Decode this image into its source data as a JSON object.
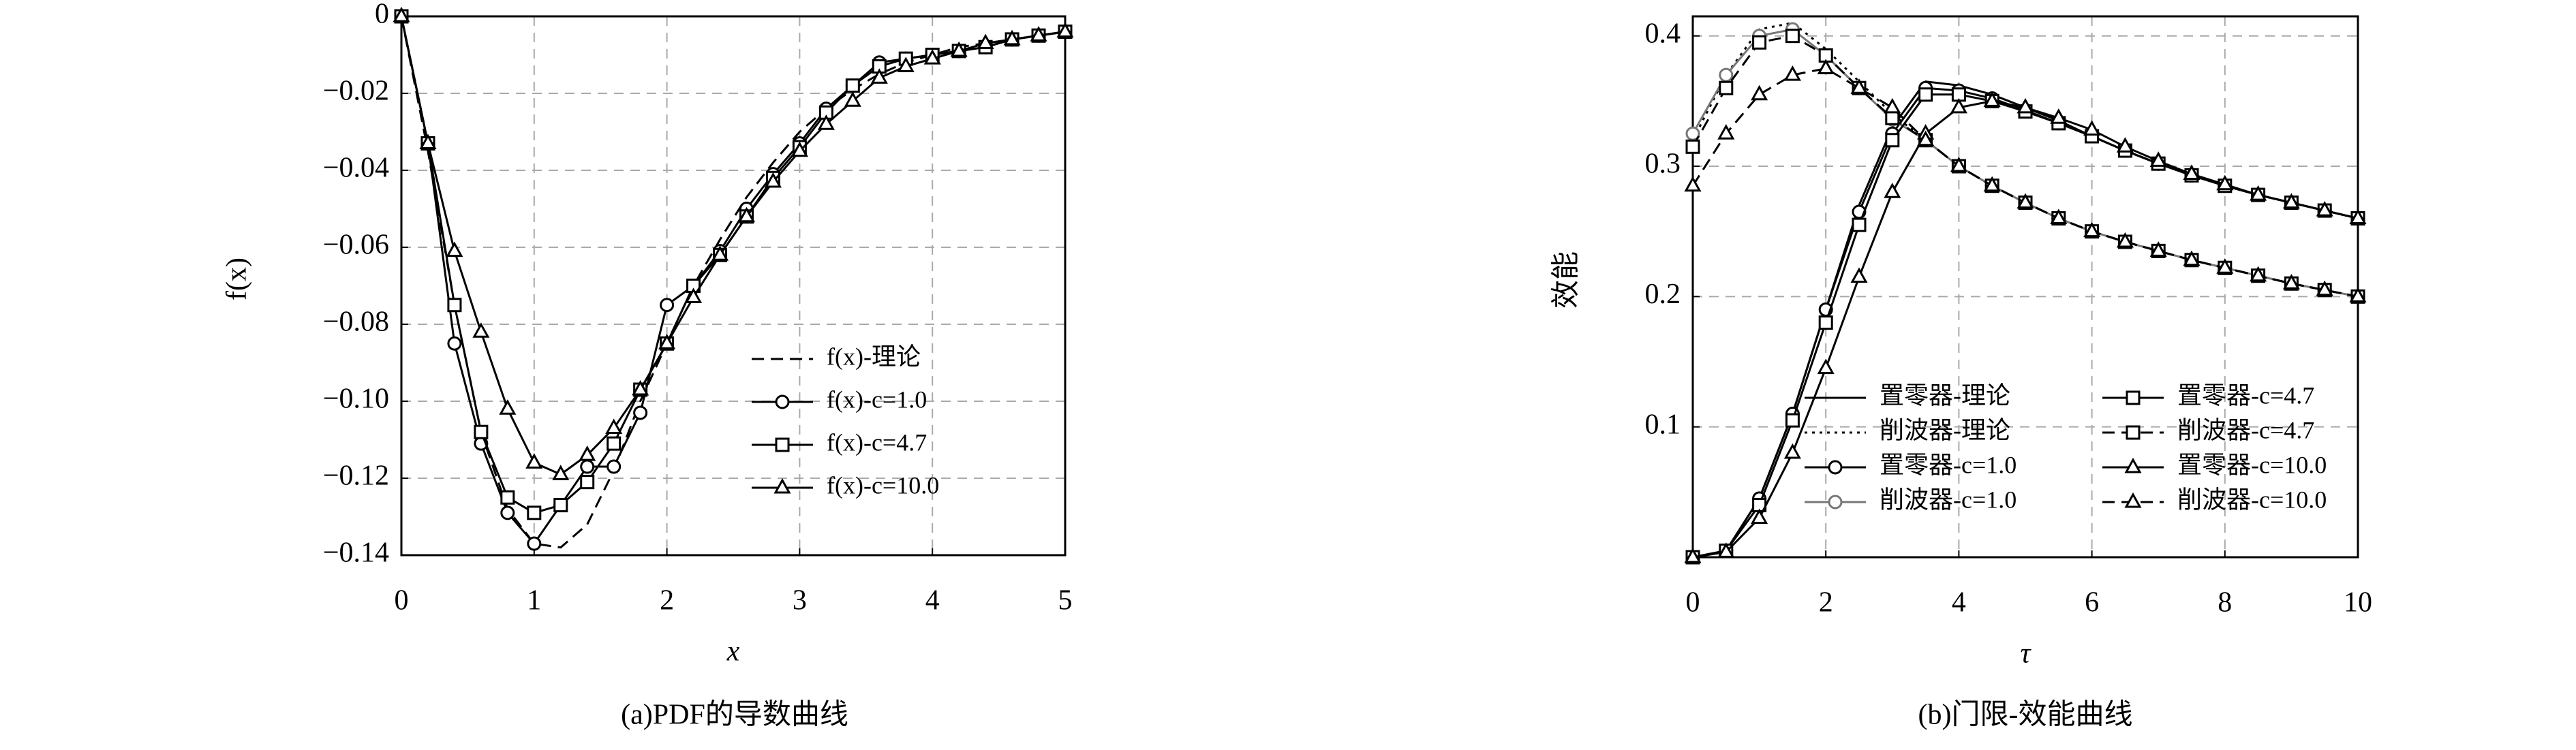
{
  "chart_data": [
    {
      "type": "line",
      "caption": "(a)PDF的导数曲线",
      "xlabel": "x",
      "ylabel": "f(x)",
      "x": [
        0,
        0.2,
        0.4,
        0.6,
        0.8,
        1.0,
        1.2,
        1.4,
        1.6,
        1.8,
        2.0,
        2.2,
        2.4,
        2.6,
        2.8,
        3.0,
        3.2,
        3.4,
        3.6,
        3.8,
        4.0,
        4.2,
        4.4,
        4.6,
        4.8,
        5.0
      ],
      "series": [
        {
          "name": "f(x)-理论",
          "color": "#000000",
          "dash": "dashed",
          "marker": null,
          "values": [
            0,
            -0.035,
            -0.075,
            -0.108,
            -0.128,
            -0.137,
            -0.138,
            -0.132,
            -0.118,
            -0.1,
            -0.085,
            -0.07,
            -0.058,
            -0.047,
            -0.038,
            -0.03,
            -0.024,
            -0.019,
            -0.015,
            -0.012,
            -0.01,
            -0.008,
            -0.007,
            -0.006,
            -0.005,
            -0.004
          ]
        },
        {
          "name": "f(x)-c=1.0",
          "color": "#000000",
          "dash": "solid",
          "marker": "circle",
          "values": [
            0,
            -0.033,
            -0.085,
            -0.111,
            -0.129,
            -0.137,
            -0.127,
            -0.117,
            -0.117,
            -0.103,
            -0.075,
            -0.07,
            -0.061,
            -0.05,
            -0.041,
            -0.033,
            -0.024,
            -0.018,
            -0.012,
            -0.011,
            -0.01,
            -0.009,
            -0.008,
            -0.006,
            -0.005,
            -0.004
          ]
        },
        {
          "name": "f(x)-c=4.7",
          "color": "#000000",
          "dash": "solid",
          "marker": "square",
          "values": [
            0,
            -0.033,
            -0.075,
            -0.108,
            -0.125,
            -0.129,
            -0.127,
            -0.121,
            -0.111,
            -0.097,
            -0.085,
            -0.07,
            -0.062,
            -0.052,
            -0.042,
            -0.034,
            -0.025,
            -0.018,
            -0.013,
            -0.011,
            -0.01,
            -0.009,
            -0.008,
            -0.006,
            -0.005,
            -0.004
          ]
        },
        {
          "name": "f(x)-c=10.0",
          "color": "#000000",
          "dash": "solid",
          "marker": "triangle",
          "values": [
            0,
            -0.033,
            -0.061,
            -0.082,
            -0.102,
            -0.116,
            -0.119,
            -0.114,
            -0.107,
            -0.097,
            -0.085,
            -0.073,
            -0.062,
            -0.052,
            -0.043,
            -0.035,
            -0.028,
            -0.022,
            -0.016,
            -0.013,
            -0.011,
            -0.009,
            -0.007,
            -0.006,
            -0.005,
            -0.004
          ]
        }
      ],
      "xlim": [
        0,
        5
      ],
      "ylim": [
        -0.14,
        0
      ],
      "xticks": [
        0,
        1,
        2,
        3,
        4,
        5
      ],
      "yticks": [
        0,
        {
          "value": -0.02,
          "label": "−0.02"
        },
        {
          "value": -0.04,
          "label": "−0.04"
        },
        {
          "value": -0.06,
          "label": "−0.06"
        },
        {
          "value": -0.08,
          "label": "−0.08"
        },
        {
          "value": -0.1,
          "label": "−0.10"
        },
        {
          "value": -0.12,
          "label": "−0.12"
        },
        {
          "value": -0.14,
          "label": "−0.14"
        }
      ],
      "grid": true,
      "legend": "lower right",
      "legend_ncol": 1
    },
    {
      "type": "line",
      "caption": "(b)门限-效能曲线",
      "xlabel": "τ",
      "ylabel": "效能",
      "x": [
        0,
        0.5,
        1.0,
        1.5,
        2.0,
        2.5,
        3.0,
        3.5,
        4.0,
        4.5,
        5.0,
        5.5,
        6.0,
        6.5,
        7.0,
        7.5,
        8.0,
        8.5,
        9.0,
        9.5,
        10.0
      ],
      "series": [
        {
          "name": "置零器-理论",
          "color": "#000000",
          "dash": "solid",
          "marker": null,
          "values": [
            0,
            0.005,
            0.045,
            0.11,
            0.19,
            0.27,
            0.33,
            0.365,
            0.362,
            0.355,
            0.345,
            0.335,
            0.323,
            0.312,
            0.302,
            0.293,
            0.285,
            0.278,
            0.272,
            0.266,
            0.26
          ]
        },
        {
          "name": "削波器-理论",
          "color": "#000000",
          "dash": "dotted",
          "marker": null,
          "values": [
            0.32,
            0.37,
            0.405,
            0.41,
            0.39,
            0.365,
            0.34,
            0.32,
            0.3,
            0.285,
            0.272,
            0.26,
            0.25,
            0.242,
            0.235,
            0.228,
            0.222,
            0.216,
            0.21,
            0.205,
            0.2
          ]
        },
        {
          "name": "置零器-c=1.0",
          "color": "#000000",
          "dash": "solid",
          "marker": "circle",
          "values": [
            0,
            0.005,
            0.045,
            0.11,
            0.19,
            0.265,
            0.325,
            0.36,
            0.358,
            0.352,
            0.343,
            0.333,
            0.323,
            0.312,
            0.302,
            0.293,
            0.285,
            0.278,
            0.272,
            0.266,
            0.26
          ]
        },
        {
          "name": "削波器-c=1.0",
          "color": "#777777",
          "dash": "solid",
          "marker": "circle",
          "values": [
            0.325,
            0.37,
            0.4,
            0.405,
            0.385,
            0.36,
            0.336,
            0.32,
            0.3,
            0.285,
            0.272,
            0.26,
            0.25,
            0.242,
            0.235,
            0.228,
            0.222,
            0.216,
            0.21,
            0.205,
            0.2
          ]
        },
        {
          "name": "置零器-c=4.7",
          "color": "#000000",
          "dash": "solid",
          "marker": "square",
          "values": [
            0,
            0.005,
            0.04,
            0.105,
            0.18,
            0.255,
            0.32,
            0.355,
            0.355,
            0.35,
            0.342,
            0.333,
            0.323,
            0.312,
            0.302,
            0.293,
            0.285,
            0.278,
            0.272,
            0.266,
            0.26
          ]
        },
        {
          "name": "削波器-c=4.7",
          "color": "#000000",
          "dash": "dashed",
          "marker": "square",
          "values": [
            0.315,
            0.36,
            0.395,
            0.4,
            0.385,
            0.36,
            0.337,
            0.32,
            0.3,
            0.285,
            0.272,
            0.26,
            0.25,
            0.242,
            0.235,
            0.228,
            0.222,
            0.216,
            0.21,
            0.205,
            0.2
          ]
        },
        {
          "name": "置零器-c=10.0",
          "color": "#000000",
          "dash": "solid",
          "marker": "triangle",
          "values": [
            0,
            0.004,
            0.03,
            0.08,
            0.145,
            0.215,
            0.28,
            0.325,
            0.345,
            0.35,
            0.345,
            0.337,
            0.328,
            0.315,
            0.304,
            0.294,
            0.286,
            0.278,
            0.272,
            0.266,
            0.26
          ]
        },
        {
          "name": "削波器-c=10.0",
          "color": "#000000",
          "dash": "dashed",
          "marker": "triangle",
          "values": [
            0.285,
            0.325,
            0.355,
            0.37,
            0.375,
            0.36,
            0.345,
            0.32,
            0.3,
            0.285,
            0.272,
            0.26,
            0.25,
            0.242,
            0.235,
            0.228,
            0.222,
            0.216,
            0.21,
            0.205,
            0.2
          ]
        }
      ],
      "xlim": [
        0,
        10
      ],
      "ylim": [
        0,
        0.415
      ],
      "xticks": [
        0,
        2,
        4,
        6,
        8,
        10
      ],
      "yticks": [
        0.1,
        0.2,
        0.3,
        0.4
      ],
      "grid": true,
      "legend": "lower right",
      "legend_ncol": 2
    }
  ]
}
